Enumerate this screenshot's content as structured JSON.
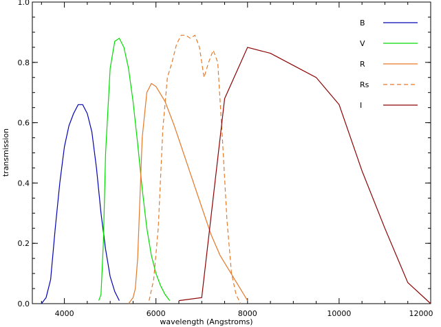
{
  "chart_data": {
    "type": "line",
    "title": "",
    "xlabel": "wavelength (Angstroms)",
    "ylabel": "transmission",
    "xlim": [
      3300,
      12000
    ],
    "ylim": [
      0,
      1.0
    ],
    "xticks": [
      4000,
      6000,
      8000,
      10000,
      12000
    ],
    "yticks": [
      0.0,
      0.2,
      0.4,
      0.6,
      0.8,
      1.0
    ],
    "ytick_labels": [
      "0.0",
      "0.2",
      "0.4",
      "0.6",
      "0.8",
      "1.0"
    ],
    "grid": false,
    "legend_position": "top-right",
    "series": [
      {
        "name": "B",
        "color": "#0000b4",
        "dash": "solid",
        "x": [
          3500,
          3600,
          3700,
          3800,
          3900,
          4000,
          4100,
          4200,
          4300,
          4400,
          4500,
          4600,
          4700,
          4800,
          4900,
          5000,
          5100,
          5200
        ],
        "y": [
          0.0,
          0.02,
          0.08,
          0.25,
          0.4,
          0.52,
          0.59,
          0.63,
          0.66,
          0.66,
          0.63,
          0.57,
          0.45,
          0.3,
          0.18,
          0.09,
          0.04,
          0.01
        ]
      },
      {
        "name": "V",
        "color": "#00dc00",
        "dash": "solid",
        "x": [
          4750,
          4800,
          4850,
          4900,
          5000,
          5100,
          5200,
          5300,
          5400,
          5500,
          5600,
          5700,
          5800,
          5900,
          6000,
          6100,
          6200,
          6300
        ],
        "y": [
          0.01,
          0.03,
          0.2,
          0.5,
          0.78,
          0.87,
          0.88,
          0.85,
          0.78,
          0.67,
          0.53,
          0.38,
          0.25,
          0.16,
          0.1,
          0.06,
          0.03,
          0.01
        ]
      },
      {
        "name": "R",
        "color": "#e67828",
        "dash": "solid",
        "x": [
          5400,
          5500,
          5550,
          5600,
          5650,
          5700,
          5800,
          5900,
          6000,
          6200,
          6400,
          6600,
          6800,
          7000,
          7200,
          7400,
          7600,
          7800,
          8000
        ],
        "y": [
          0.0,
          0.02,
          0.05,
          0.15,
          0.35,
          0.55,
          0.7,
          0.73,
          0.72,
          0.67,
          0.59,
          0.5,
          0.41,
          0.32,
          0.23,
          0.16,
          0.11,
          0.06,
          0.01
        ]
      },
      {
        "name": "Rs",
        "color": "#e67828",
        "dash": "dashed",
        "x": [
          5850,
          5950,
          6050,
          6150,
          6250,
          6350,
          6450,
          6550,
          6650,
          6750,
          6850,
          6950,
          7050,
          7150,
          7250,
          7350,
          7450,
          7550,
          7650,
          7750,
          7850
        ],
        "y": [
          0.01,
          0.08,
          0.25,
          0.58,
          0.75,
          0.8,
          0.86,
          0.89,
          0.89,
          0.88,
          0.89,
          0.85,
          0.75,
          0.8,
          0.84,
          0.8,
          0.55,
          0.28,
          0.1,
          0.03,
          0.0
        ]
      },
      {
        "name": "I",
        "color": "#8c0000",
        "dash": "solid",
        "x": [
          6500,
          7000,
          7500,
          8000,
          8500,
          9000,
          9500,
          10000,
          10500,
          11000,
          11500,
          12000
        ],
        "y": [
          0.01,
          0.02,
          0.68,
          0.85,
          0.83,
          0.79,
          0.75,
          0.66,
          0.44,
          0.25,
          0.07,
          0.0
        ]
      }
    ]
  }
}
